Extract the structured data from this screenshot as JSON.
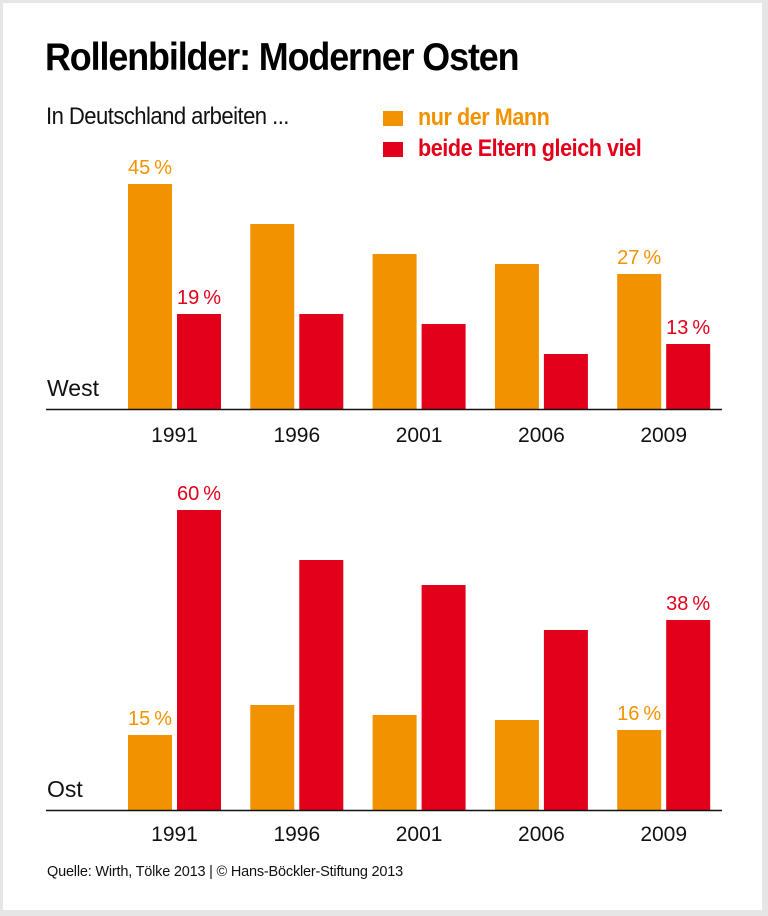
{
  "title": "Rollenbilder: Moderner Osten",
  "subtitle": "In Deutschland arbeiten ...",
  "legend": [
    {
      "label": "nur der Mann",
      "color": "#F39200"
    },
    {
      "label": "beide Eltern gleich viel",
      "color": "#E2001A"
    }
  ],
  "footer": "Quelle: Wirth, Tölke 2013 | © Hans-Böckler-Stiftung 2013",
  "chart_data": [
    {
      "type": "bar",
      "title": "West",
      "categories": [
        "1991",
        "1996",
        "2001",
        "2006",
        "2009"
      ],
      "series": [
        {
          "name": "nur der Mann",
          "color": "#F39200",
          "values": [
            45,
            37,
            31,
            29,
            27
          ]
        },
        {
          "name": "beide Eltern gleich viel",
          "color": "#E2001A",
          "values": [
            19,
            19,
            17,
            11,
            13
          ]
        }
      ],
      "data_labels": {
        "nur der Mann": {
          "1991": "45%",
          "2009": "27%"
        },
        "beide Eltern gleich viel": {
          "1991": "19%",
          "2009": "13%"
        }
      },
      "xlabel": "",
      "ylabel": "",
      "ylim": [
        0,
        60
      ],
      "grid": false,
      "legend": "top-right"
    },
    {
      "type": "bar",
      "title": "Ost",
      "categories": [
        "1991",
        "1996",
        "2001",
        "2006",
        "2009"
      ],
      "series": [
        {
          "name": "nur der Mann",
          "color": "#F39200",
          "values": [
            15,
            21,
            19,
            18,
            16
          ]
        },
        {
          "name": "beide Eltern gleich viel",
          "color": "#E2001A",
          "values": [
            60,
            50,
            45,
            36,
            38
          ]
        }
      ],
      "data_labels": {
        "nur der Mann": {
          "1991": "15%",
          "2009": "16%"
        },
        "beide Eltern gleich viel": {
          "1991": "60%",
          "2009": "38%"
        }
      },
      "xlabel": "",
      "ylabel": "",
      "ylim": [
        0,
        60
      ],
      "grid": false,
      "legend": "top-right"
    }
  ]
}
